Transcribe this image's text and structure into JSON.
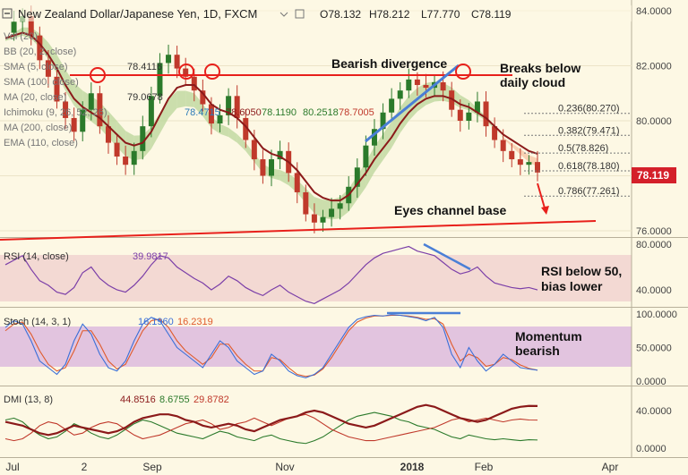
{
  "chart_data": [
    {
      "type": "candlestick",
      "title": "New Zealand Dollar/Japanese Yen, 1D, FXCM",
      "ohlc_readout": {
        "open": "O78.132",
        "high": "H78.212",
        "low": "L77.770",
        "close": "C78.119"
      },
      "last_price": "78.119",
      "ylim": [
        75.5,
        84.5
      ],
      "y_ticks": [
        {
          "v": 84,
          "label": "84.0000"
        },
        {
          "v": 82,
          "label": "82.0000"
        },
        {
          "v": 80,
          "label": "80.0000"
        },
        {
          "v": 78,
          "label": "78.0000"
        },
        {
          "v": 76,
          "label": "76.0000"
        }
      ],
      "x_ticks": [
        "Jul",
        "2",
        "Sep",
        "Nov",
        "2018",
        "Feb",
        "Apr"
      ],
      "colors": {
        "up": "#2b7a2b",
        "down": "#c0392b",
        "ma20": "#8b1a1a",
        "cloud_bull": "#b9d69a",
        "cloud_bear": "#f6c4a2",
        "resistance": "#e8201b",
        "divergence": "#4a7fd6"
      },
      "close_path": [
        83.2,
        83.6,
        83.8,
        83.1,
        82.2,
        81.6,
        80.7,
        80.1,
        79.6,
        80.4,
        81.0,
        79.8,
        79.2,
        78.7,
        78.4,
        78.9,
        79.8,
        80.9,
        82.1,
        82.4,
        81.9,
        81.6,
        81.1,
        80.6,
        79.9,
        80.2,
        80.9,
        80.1,
        79.3,
        78.6,
        78.0,
        78.6,
        78.9,
        78.1,
        77.4,
        76.6,
        76.3,
        76.5,
        76.8,
        77.0,
        77.6,
        78.3,
        79.1,
        79.7,
        80.3,
        80.8,
        81.1,
        81.5,
        81.3,
        81.2,
        81.4,
        81.1,
        80.4,
        80.0,
        80.3,
        80.7,
        79.8,
        79.3,
        78.9,
        78.6,
        78.4,
        78.5,
        78.12
      ],
      "ma20_path": [
        83.0,
        83.1,
        83.2,
        83.1,
        82.8,
        82.4,
        81.9,
        81.3,
        80.8,
        80.5,
        80.3,
        80.1,
        79.8,
        79.5,
        79.2,
        79.1,
        79.2,
        79.6,
        80.2,
        80.8,
        81.2,
        81.3,
        81.3,
        81.0,
        80.6,
        80.4,
        80.3,
        80.1,
        79.8,
        79.4,
        79.0,
        78.8,
        78.7,
        78.5,
        78.2,
        77.8,
        77.4,
        77.2,
        77.1,
        77.1,
        77.3,
        77.7,
        78.1,
        78.6,
        79.0,
        79.4,
        79.9,
        80.3,
        80.6,
        80.8,
        80.9,
        80.9,
        80.8,
        80.6,
        80.5,
        80.3,
        80.1,
        79.8,
        79.5,
        79.3,
        79.1,
        78.9,
        78.8
      ],
      "legend": [
        {
          "label": "Vol (20)"
        },
        {
          "label": "BB (20, 2, close)"
        },
        {
          "label": "SMA (5, close)",
          "value": "78.4116"
        },
        {
          "label": "SMA (100, close)"
        },
        {
          "label": "MA (20, close)",
          "value": "79.0678"
        },
        {
          "label": "Ichimoku (9, 26, 52, 26)",
          "values": [
            "78.4715",
            "78.6050",
            "78.1190",
            "80.2518",
            "78.7005"
          ]
        },
        {
          "label": "MA (200, close)"
        },
        {
          "label": "EMA (110, close)"
        }
      ],
      "fib_levels": [
        {
          "ratio": "0.236",
          "price": "80.270",
          "v": 80.27
        },
        {
          "ratio": "0.382",
          "price": "79.471",
          "v": 79.471
        },
        {
          "ratio": "0.5",
          "price": "78.826",
          "v": 78.826
        },
        {
          "ratio": "0.618",
          "price": "78.180",
          "v": 78.18
        },
        {
          "ratio": "0.786",
          "price": "77.261",
          "v": 77.261
        }
      ],
      "annotations": [
        "Bearish divergence",
        "Breaks below",
        "daily cloud",
        "Eyes channel base"
      ]
    },
    {
      "type": "line",
      "name": "RSI (14, close)",
      "value": "39.9817",
      "ylim": [
        20,
        90
      ],
      "y_ticks": [
        {
          "v": 80,
          "label": "80.0000"
        },
        {
          "v": 40,
          "label": "40.0000"
        }
      ],
      "rsi_path": [
        62,
        66,
        70,
        58,
        48,
        44,
        38,
        36,
        42,
        55,
        60,
        50,
        44,
        40,
        38,
        44,
        52,
        62,
        70,
        68,
        60,
        55,
        50,
        46,
        40,
        45,
        52,
        48,
        42,
        38,
        35,
        40,
        44,
        38,
        34,
        30,
        28,
        32,
        36,
        40,
        46,
        54,
        62,
        68,
        72,
        74,
        76,
        78,
        74,
        72,
        70,
        64,
        58,
        54,
        56,
        60,
        52,
        46,
        44,
        42,
        41,
        42,
        39.98
      ],
      "annotations": [
        "RSI below 50,",
        "bias lower"
      ]
    },
    {
      "type": "line",
      "name": "Stoch (14, 3, 1)",
      "values": [
        "16.1960",
        "16.2319"
      ],
      "ylim": [
        0,
        100
      ],
      "y_ticks": [
        {
          "v": 100,
          "label": "100.0000"
        },
        {
          "v": 50,
          "label": "50.0000"
        },
        {
          "v": 0,
          "label": "0.0000"
        }
      ],
      "k_path": [
        80,
        90,
        85,
        60,
        30,
        20,
        10,
        25,
        60,
        85,
        70,
        40,
        20,
        15,
        30,
        60,
        85,
        95,
        90,
        70,
        50,
        40,
        30,
        20,
        40,
        60,
        50,
        30,
        20,
        10,
        15,
        40,
        30,
        15,
        8,
        5,
        10,
        20,
        40,
        60,
        80,
        92,
        96,
        98,
        97,
        99,
        98,
        96,
        94,
        90,
        95,
        80,
        40,
        20,
        50,
        30,
        15,
        25,
        40,
        30,
        20,
        18,
        16.2
      ],
      "d_path": [
        75,
        85,
        88,
        70,
        45,
        25,
        15,
        20,
        45,
        75,
        75,
        55,
        30,
        18,
        25,
        50,
        75,
        90,
        92,
        80,
        60,
        45,
        35,
        25,
        35,
        55,
        55,
        38,
        25,
        15,
        15,
        35,
        32,
        20,
        10,
        7,
        9,
        18,
        35,
        55,
        75,
        88,
        94,
        97,
        97,
        98,
        98,
        97,
        95,
        92,
        93,
        85,
        55,
        30,
        40,
        35,
        22,
        25,
        35,
        32,
        24,
        19,
        16.23
      ],
      "annotations": [
        "Momentum",
        "bearish"
      ]
    },
    {
      "type": "line",
      "name": "DMI (13, 8)",
      "values": [
        "44.8516",
        "8.6755",
        "29.8782"
      ],
      "ylim": [
        -5,
        55
      ],
      "y_ticks": [
        {
          "v": 40,
          "label": "40.0000"
        },
        {
          "v": 0,
          "label": "0.0000"
        }
      ],
      "adx_path": [
        28,
        26,
        24,
        20,
        16,
        14,
        16,
        20,
        24,
        22,
        20,
        18,
        16,
        18,
        22,
        28,
        32,
        34,
        36,
        36,
        34,
        30,
        28,
        24,
        22,
        24,
        26,
        24,
        20,
        18,
        22,
        26,
        30,
        32,
        34,
        38,
        40,
        38,
        34,
        30,
        26,
        24,
        22,
        24,
        28,
        32,
        36,
        40,
        44,
        46,
        44,
        40,
        36,
        32,
        30,
        28,
        30,
        34,
        38,
        42,
        44,
        45,
        44.85
      ],
      "plus_path": [
        30,
        32,
        28,
        20,
        14,
        10,
        12,
        18,
        26,
        22,
        16,
        12,
        10,
        14,
        20,
        26,
        30,
        28,
        24,
        20,
        16,
        14,
        12,
        10,
        14,
        18,
        16,
        12,
        10,
        8,
        12,
        14,
        10,
        8,
        6,
        5,
        8,
        12,
        18,
        24,
        30,
        34,
        36,
        38,
        36,
        34,
        30,
        28,
        24,
        22,
        20,
        16,
        12,
        10,
        14,
        12,
        10,
        9,
        10,
        9,
        8,
        9,
        8.68
      ],
      "minus_path": [
        10,
        8,
        10,
        16,
        24,
        28,
        26,
        20,
        14,
        16,
        22,
        26,
        28,
        26,
        20,
        14,
        10,
        12,
        14,
        18,
        22,
        26,
        28,
        30,
        26,
        20,
        22,
        26,
        28,
        32,
        28,
        24,
        28,
        32,
        34,
        36,
        32,
        26,
        20,
        16,
        12,
        10,
        8,
        8,
        10,
        12,
        14,
        16,
        18,
        20,
        22,
        26,
        30,
        32,
        28,
        30,
        32,
        30,
        28,
        30,
        31,
        30,
        29.88
      ]
    }
  ]
}
